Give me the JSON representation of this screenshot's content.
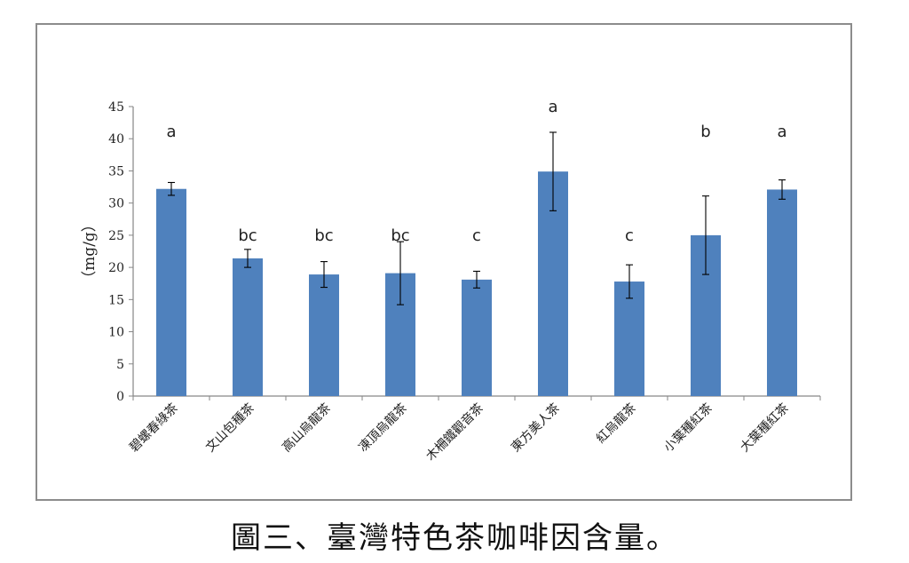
{
  "caption": "圖三、臺灣特色茶咖啡因含量。",
  "chart_data": {
    "type": "bar",
    "ylabel": "（mg/g）",
    "ylim": [
      0,
      45
    ],
    "yticks": [
      0,
      5,
      10,
      15,
      20,
      25,
      30,
      35,
      40,
      45
    ],
    "grid": false,
    "bar_color": "#4f81bd",
    "categories": [
      "碧螺春綠茶",
      "文山包種茶",
      "高山烏龍茶",
      "凍頂烏龍茶",
      "木柵鐵觀音茶",
      "東方美人茶",
      "紅烏龍茶",
      "小葉種紅茶",
      "大葉種紅茶"
    ],
    "values": [
      32.2,
      21.4,
      18.9,
      19.1,
      18.1,
      34.9,
      17.8,
      25.0,
      32.1
    ],
    "error": [
      1.0,
      1.4,
      2.0,
      4.9,
      1.3,
      6.1,
      2.6,
      6.1,
      1.5
    ],
    "significance": [
      "a",
      "bc",
      "bc",
      "bc",
      "c",
      "a",
      "c",
      "b",
      "a"
    ]
  }
}
